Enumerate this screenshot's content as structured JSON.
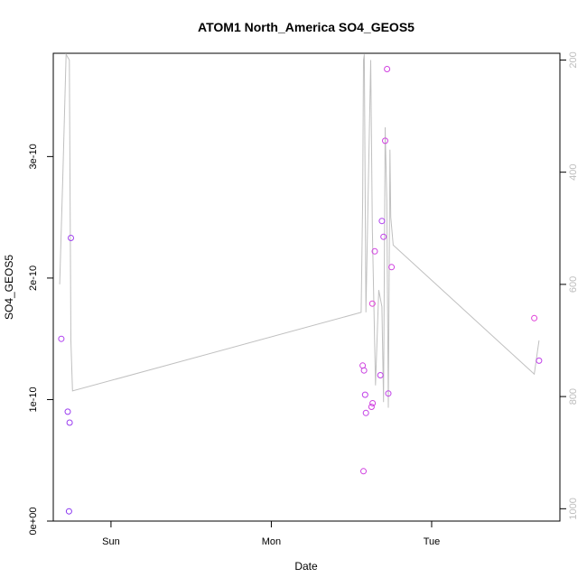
{
  "chart_data": {
    "type": "scatter",
    "title": "ATOM1 North_America SO4_GEOS5",
    "xlabel": "Date",
    "ylabel": "SO4_GEOS5",
    "x_unit": "days",
    "xlim": [
      -0.36,
      2.8
    ],
    "ylim": [
      0,
      3.85e-10
    ],
    "x_ticks": [
      {
        "value": 0,
        "label": "Sun"
      },
      {
        "value": 1,
        "label": "Mon"
      },
      {
        "value": 2,
        "label": "Tue"
      }
    ],
    "y_ticks": [
      {
        "value": 0,
        "label": "0e+00"
      },
      {
        "value": 1e-10,
        "label": "1e-10"
      },
      {
        "value": 2e-10,
        "label": "2e-10"
      },
      {
        "value": 3e-10,
        "label": "3e-10"
      }
    ],
    "y2_axis": {
      "reversed": true,
      "range": [
        188,
        1022
      ],
      "ticks": [
        {
          "value": 200,
          "label": "200"
        },
        {
          "value": 400,
          "label": "400"
        },
        {
          "value": 600,
          "label": "600"
        },
        {
          "value": 800,
          "label": "800"
        },
        {
          "value": 1000,
          "label": "1000"
        }
      ]
    },
    "grid": false,
    "legend": "none",
    "series": [
      {
        "kind": "points",
        "marker": "open-circle",
        "points": [
          {
            "x": -0.31,
            "y": 1.5e-10,
            "color": "#b040f0"
          },
          {
            "x": -0.27,
            "y": 9e-11,
            "color": "#9a3cf0"
          },
          {
            "x": -0.262,
            "y": 8e-12,
            "color": "#8a38f0"
          },
          {
            "x": -0.258,
            "y": 8.1e-11,
            "color": "#9a3cf0"
          },
          {
            "x": -0.25,
            "y": 2.33e-10,
            "color": "#a040f0"
          },
          {
            "x": 1.57,
            "y": 1.28e-10,
            "color": "#d040e0"
          },
          {
            "x": 1.575,
            "y": 4.1e-11,
            "color": "#d040e0"
          },
          {
            "x": 1.578,
            "y": 1.24e-10,
            "color": "#c840e0"
          },
          {
            "x": 1.585,
            "y": 1.04e-10,
            "color": "#c040e8"
          },
          {
            "x": 1.59,
            "y": 8.9e-11,
            "color": "#c440e6"
          },
          {
            "x": 1.625,
            "y": 9.4e-11,
            "color": "#d040e0"
          },
          {
            "x": 1.632,
            "y": 9.7e-11,
            "color": "#d040e0"
          },
          {
            "x": 1.63,
            "y": 1.79e-10,
            "color": "#e040d8"
          },
          {
            "x": 1.645,
            "y": 2.22e-10,
            "color": "#d040e0"
          },
          {
            "x": 1.68,
            "y": 1.2e-10,
            "color": "#c040e8"
          },
          {
            "x": 1.69,
            "y": 2.47e-10,
            "color": "#b040f0"
          },
          {
            "x": 1.7,
            "y": 2.34e-10,
            "color": "#c040e8"
          },
          {
            "x": 1.71,
            "y": 3.13e-10,
            "color": "#d040e0"
          },
          {
            "x": 1.722,
            "y": 3.72e-10,
            "color": "#d040e0"
          },
          {
            "x": 1.73,
            "y": 1.05e-10,
            "color": "#c040e8"
          },
          {
            "x": 1.75,
            "y": 2.09e-10,
            "color": "#d040e0"
          },
          {
            "x": 2.64,
            "y": 1.67e-10,
            "color": "#e040d8"
          },
          {
            "x": 2.67,
            "y": 1.32e-10,
            "color": "#c040e8"
          }
        ]
      },
      {
        "kind": "line",
        "axis": "y2",
        "color": "#c0c0c0",
        "points": [
          {
            "x": -0.32,
            "y": 600
          },
          {
            "x": -0.3,
            "y": 400
          },
          {
            "x": -0.28,
            "y": 190
          },
          {
            "x": -0.26,
            "y": 200
          },
          {
            "x": -0.25,
            "y": 700
          },
          {
            "x": -0.24,
            "y": 790
          },
          {
            "x": 1.56,
            "y": 650
          },
          {
            "x": 1.57,
            "y": 450
          },
          {
            "x": 1.575,
            "y": 200
          },
          {
            "x": 1.58,
            "y": 190
          },
          {
            "x": 1.59,
            "y": 650
          },
          {
            "x": 1.62,
            "y": 200
          },
          {
            "x": 1.63,
            "y": 500
          },
          {
            "x": 1.65,
            "y": 780
          },
          {
            "x": 1.67,
            "y": 610
          },
          {
            "x": 1.69,
            "y": 640
          },
          {
            "x": 1.7,
            "y": 810
          },
          {
            "x": 1.71,
            "y": 320
          },
          {
            "x": 1.72,
            "y": 450
          },
          {
            "x": 1.73,
            "y": 820
          },
          {
            "x": 1.74,
            "y": 360
          },
          {
            "x": 1.745,
            "y": 480
          },
          {
            "x": 1.76,
            "y": 530
          },
          {
            "x": 2.64,
            "y": 760
          },
          {
            "x": 2.66,
            "y": 720
          },
          {
            "x": 2.67,
            "y": 700
          }
        ]
      }
    ]
  }
}
